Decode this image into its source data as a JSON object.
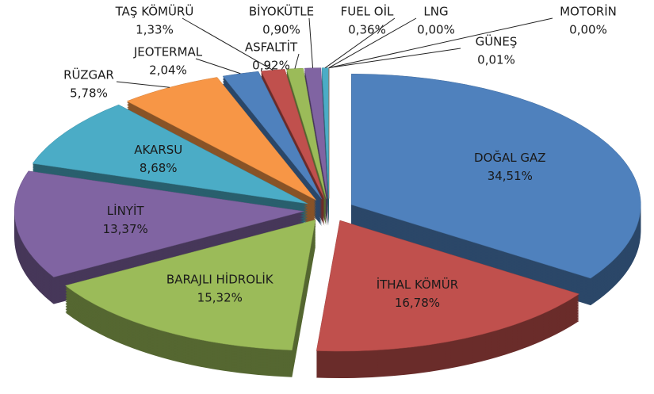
{
  "chart_data": {
    "type": "pie",
    "categories": [
      "DOĞAL GAZ",
      "İTHAL KÖMÜR",
      "BARAJLI HİDROLİK",
      "LİNYİT",
      "AKARSU",
      "RÜZGAR",
      "JEOTERMAL",
      "TAŞ KÖMÜRÜ",
      "ASFALTİT",
      "BİYOKÜTLE",
      "FUEL OİL",
      "LNG",
      "GÜNEŞ",
      "MOTORİN"
    ],
    "values": [
      34.51,
      16.78,
      15.32,
      13.37,
      8.68,
      5.78,
      2.04,
      1.33,
      0.92,
      0.9,
      0.36,
      0.0,
      0.01,
      0.0
    ],
    "value_labels": [
      "34,51%",
      "16,78%",
      "15,32%",
      "13,37%",
      "8,68%",
      "5,78%",
      "2,04%",
      "1,33%",
      "0,92%",
      "0,90%",
      "0,36%",
      "0,00%",
      "0,01%",
      "0,00%"
    ],
    "colors": [
      "#4f81bd",
      "#c0504d",
      "#9bbb59",
      "#8064a2",
      "#4bacc6",
      "#f79646",
      "#4f81bd",
      "#c0504d",
      "#9bbb59",
      "#8064a2",
      "#4bacc6",
      "#f79646",
      "#4f81bd",
      "#c0504d"
    ]
  }
}
